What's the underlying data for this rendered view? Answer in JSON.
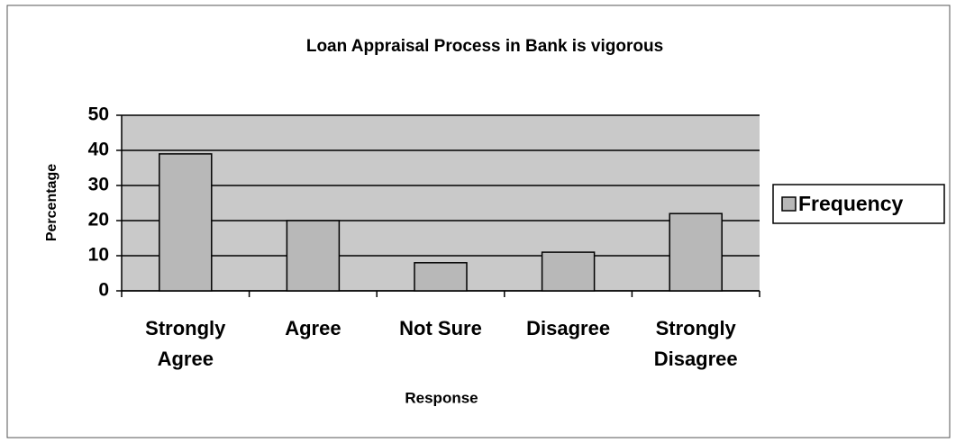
{
  "chart_data": {
    "type": "bar",
    "title": "Loan Appraisal Process in Bank is vigorous",
    "x_label": "Response",
    "y_label": "Percentage",
    "categories": [
      "Strongly Agree",
      "Agree",
      "Not Sure",
      "Disagree",
      "Strongly Disagree"
    ],
    "series": [
      {
        "name": "Frequency",
        "color": "#b8b8b8",
        "values": [
          39,
          20,
          8,
          11,
          22
        ]
      }
    ],
    "ylim": [
      0,
      50
    ],
    "yticks": [
      0,
      10,
      20,
      30,
      40,
      50
    ],
    "grid": true,
    "legend": "right"
  }
}
